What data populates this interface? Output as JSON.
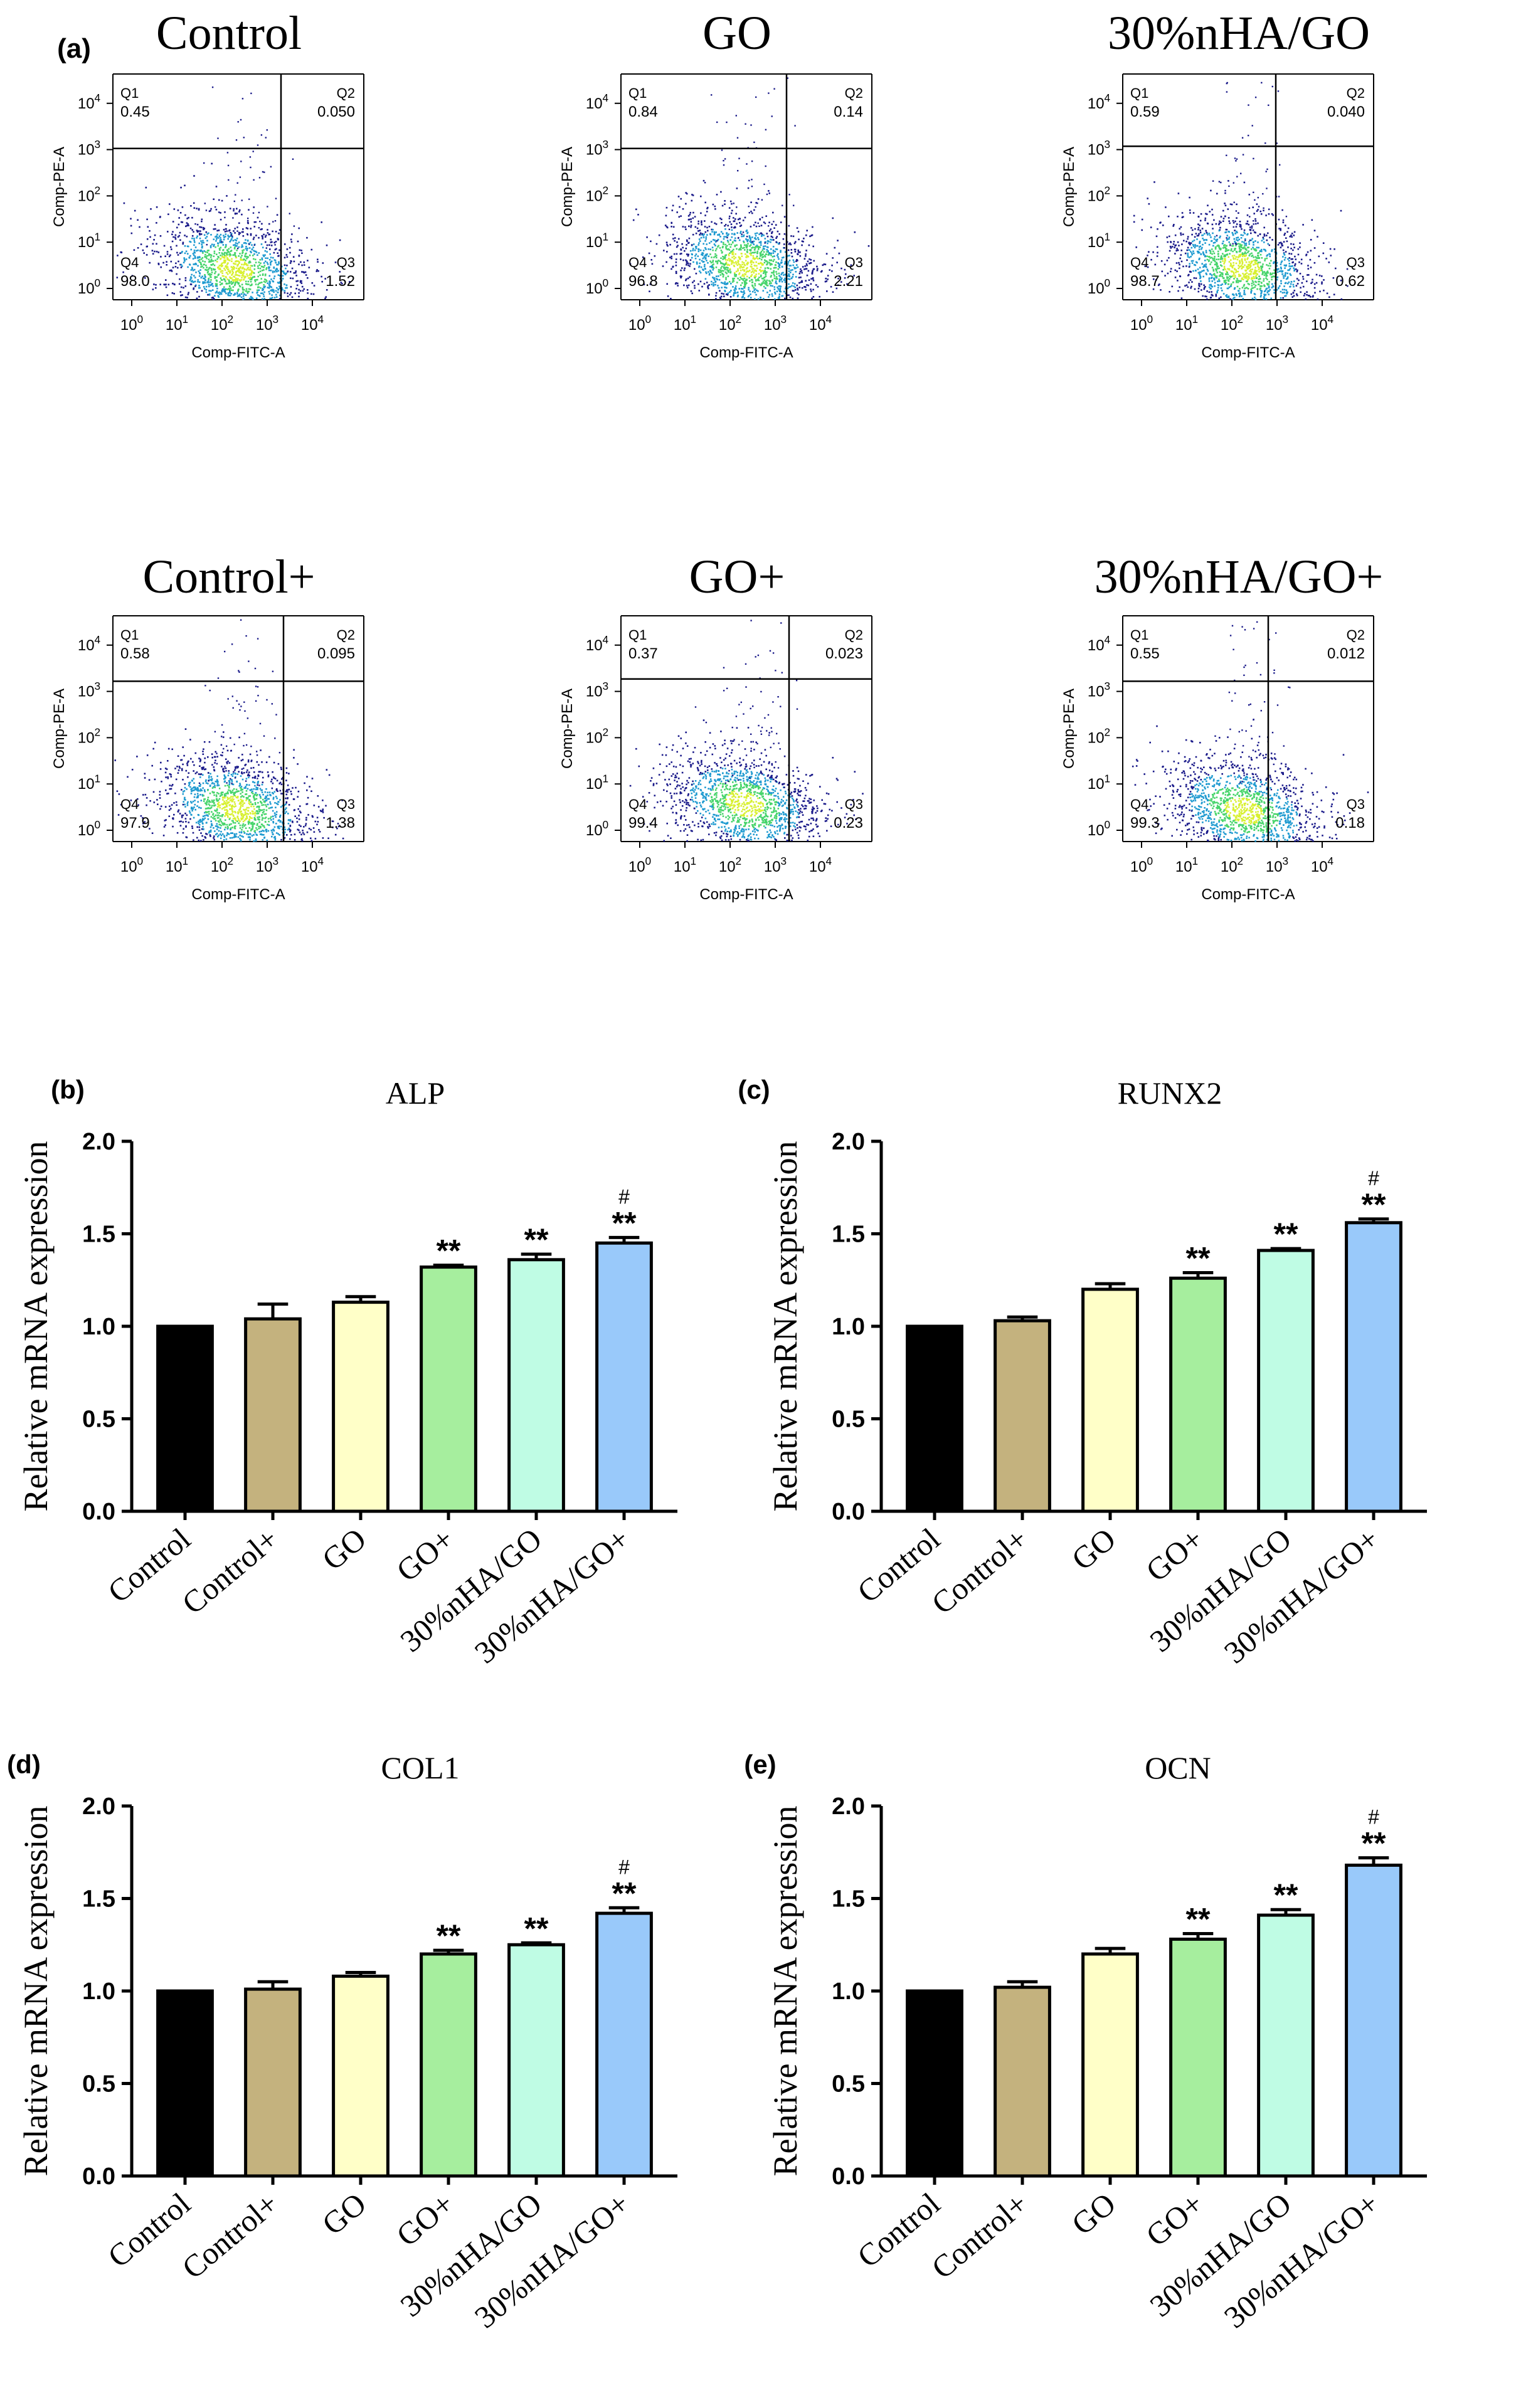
{
  "flow": {
    "label": "(a)",
    "x_axis_label": "Comp-FITC-A",
    "y_axis_label": "Comp-PE-A",
    "x_ticks": [
      "10",
      "10",
      "10",
      "10",
      "10"
    ],
    "x_tick_exponents": [
      "0",
      "1",
      "2",
      "3",
      "4"
    ],
    "y_ticks": [
      "10",
      "10",
      "10",
      "10",
      "10"
    ],
    "y_tick_exponents": [
      "0",
      "1",
      "2",
      "3",
      "4"
    ],
    "panels": [
      {
        "title": "Control",
        "q1_label": "Q1",
        "q1": "0.45",
        "q2_label": "Q2",
        "q2": "0.050",
        "q3_label": "Q3",
        "q3": "1.52",
        "q4_label": "Q4",
        "q4": "98.0"
      },
      {
        "title": "GO",
        "q1_label": "Q1",
        "q1": "0.84",
        "q2_label": "Q2",
        "q2": "0.14",
        "q3_label": "Q3",
        "q3": "2.21",
        "q4_label": "Q4",
        "q4": "96.8"
      },
      {
        "title": "30%nHA/GO",
        "q1_label": "Q1",
        "q1": "0.59",
        "q2_label": "Q2",
        "q2": "0.040",
        "q3_label": "Q3",
        "q3": "0.62",
        "q4_label": "Q4",
        "q4": "98.7"
      },
      {
        "title": "Control+",
        "q1_label": "Q1",
        "q1": "0.58",
        "q2_label": "Q2",
        "q2": "0.095",
        "q3_label": "Q3",
        "q3": "1.38",
        "q4_label": "Q4",
        "q4": "97.9"
      },
      {
        "title": "GO+",
        "q1_label": "Q1",
        "q1": "0.37",
        "q2_label": "Q2",
        "q2": "0.023",
        "q3_label": "Q3",
        "q3": "0.23",
        "q4_label": "Q4",
        "q4": "99.4"
      },
      {
        "title": "30%nHA/GO+",
        "q1_label": "Q1",
        "q1": "0.55",
        "q2_label": "Q2",
        "q2": "0.012",
        "q3_label": "Q3",
        "q3": "0.18",
        "q4_label": "Q4",
        "q4": "99.3"
      }
    ]
  },
  "colors": {
    "Control": "#000000",
    "Control+": "#C4B27E",
    "GO": "#FFFFC8",
    "GO+": "#A6EE9E",
    "30%nHA/GO": "#BFFCE4",
    "30%nHA/GO+": "#99C9FA",
    "density_low": "#1b1b8a",
    "density_mid": "#1e9ad0",
    "density_high": "#46d46a",
    "density_peak": "#d8f030"
  },
  "chart_data": [
    {
      "type": "bar",
      "label": "(b)",
      "title": "ALP",
      "ylabel": "Relative mRNA expression",
      "xlabel": "",
      "ylim": [
        0,
        2.0
      ],
      "yticks": [
        "0.0",
        "0.5",
        "1.0",
        "1.5",
        "2.0"
      ],
      "categories": [
        "Control",
        "Control+",
        "GO",
        "GO+",
        "30%nHA/GO",
        "30%nHA/GO+"
      ],
      "values": [
        1.0,
        1.04,
        1.13,
        1.32,
        1.36,
        1.45
      ],
      "errors": [
        0.0,
        0.08,
        0.03,
        0.01,
        0.03,
        0.03
      ],
      "significance": [
        "",
        "",
        "",
        "**",
        "**",
        "**"
      ],
      "hash": [
        "",
        "",
        "",
        "",
        "",
        "#"
      ]
    },
    {
      "type": "bar",
      "label": "(c)",
      "title": "RUNX2",
      "ylabel": "Relative mRNA expression",
      "xlabel": "",
      "ylim": [
        0,
        2.0
      ],
      "yticks": [
        "0.0",
        "0.5",
        "1.0",
        "1.5",
        "2.0"
      ],
      "categories": [
        "Control",
        "Control+",
        "GO",
        "GO+",
        "30%nHA/GO",
        "30%nHA/GO+"
      ],
      "values": [
        1.0,
        1.03,
        1.2,
        1.26,
        1.41,
        1.56
      ],
      "errors": [
        0.0,
        0.02,
        0.03,
        0.03,
        0.01,
        0.02
      ],
      "significance": [
        "",
        "",
        "",
        "**",
        "**",
        "**"
      ],
      "hash": [
        "",
        "",
        "",
        "",
        "",
        "#"
      ]
    },
    {
      "type": "bar",
      "label": "(d)",
      "title": "COL1",
      "ylabel": "Relative mRNA expression",
      "xlabel": "",
      "ylim": [
        0,
        2.0
      ],
      "yticks": [
        "0.0",
        "0.5",
        "1.0",
        "1.5",
        "2.0"
      ],
      "categories": [
        "Control",
        "Control+",
        "GO",
        "GO+",
        "30%nHA/GO",
        "30%nHA/GO+"
      ],
      "values": [
        1.0,
        1.01,
        1.08,
        1.2,
        1.25,
        1.42
      ],
      "errors": [
        0.0,
        0.04,
        0.02,
        0.02,
        0.01,
        0.03
      ],
      "significance": [
        "",
        "",
        "",
        "**",
        "**",
        "**"
      ],
      "hash": [
        "",
        "",
        "",
        "",
        "",
        "#"
      ]
    },
    {
      "type": "bar",
      "label": "(e)",
      "title": "OCN",
      "ylabel": "Relative mRNA expression",
      "xlabel": "",
      "ylim": [
        0,
        2.0
      ],
      "yticks": [
        "0.0",
        "0.5",
        "1.0",
        "1.5",
        "2.0"
      ],
      "categories": [
        "Control",
        "Control+",
        "GO",
        "GO+",
        "30%nHA/GO",
        "30%nHA/GO+"
      ],
      "values": [
        1.0,
        1.02,
        1.2,
        1.28,
        1.41,
        1.68
      ],
      "errors": [
        0.0,
        0.03,
        0.03,
        0.03,
        0.03,
        0.04
      ],
      "significance": [
        "",
        "",
        "",
        "**",
        "**",
        "**"
      ],
      "hash": [
        "",
        "",
        "",
        "",
        "",
        "#"
      ]
    }
  ]
}
